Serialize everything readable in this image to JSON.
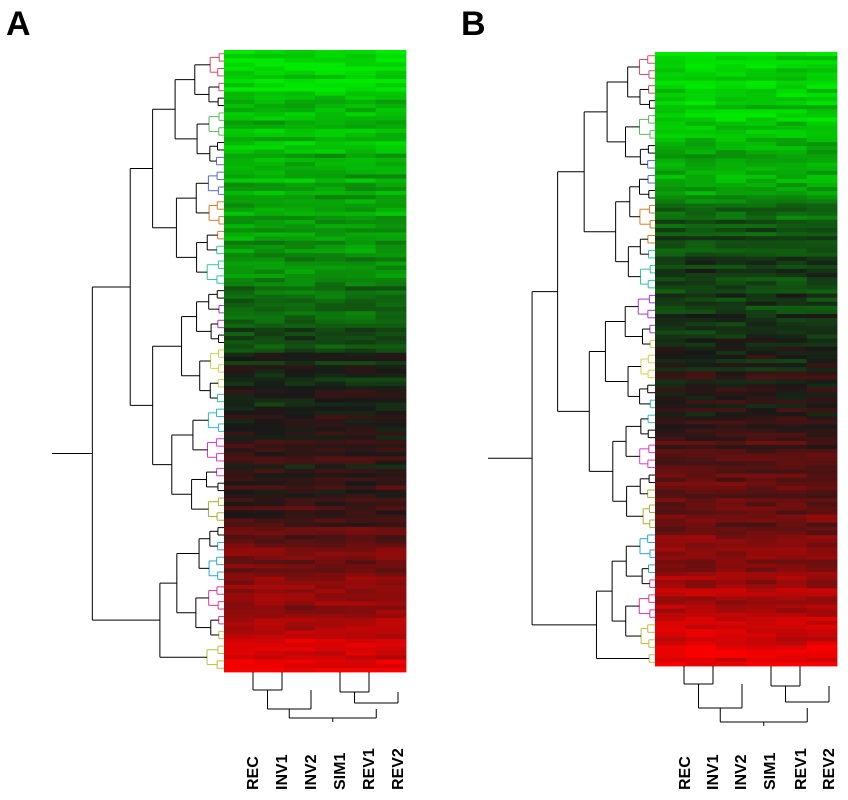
{
  "panels": [
    {
      "letter": "A",
      "columns": [
        "REC",
        "INV1",
        "INV2",
        "SIM1",
        "REV1",
        "REV2"
      ],
      "cluster_colors": [
        "#d94a5a",
        "#5bb85b",
        "#4a6fd1",
        "#d77a2a",
        "#2ec4a6",
        "#a03ad1",
        "#cfcf4a",
        "#2bbad1",
        "#d23ad1",
        "#a8b030",
        "#2aa6d1",
        "#d23a9c",
        "#b8c040"
      ],
      "row_profile": [
        {
          "at": 0.0,
          "value": -1.0
        },
        {
          "at": 0.08,
          "value": -0.8
        },
        {
          "at": 0.2,
          "value": -0.72
        },
        {
          "at": 0.3,
          "value": -0.6
        },
        {
          "at": 0.38,
          "value": -0.45
        },
        {
          "at": 0.44,
          "value": -0.3
        },
        {
          "at": 0.47,
          "value": -0.2
        },
        {
          "at": 0.5,
          "value": -0.05
        },
        {
          "at": 0.6,
          "value": 0.0
        },
        {
          "at": 0.7,
          "value": 0.12
        },
        {
          "at": 0.8,
          "value": 0.35
        },
        {
          "at": 0.9,
          "value": 0.55
        },
        {
          "at": 1.0,
          "value": 0.95
        }
      ]
    },
    {
      "letter": "B",
      "columns": [
        "REC",
        "INV1",
        "INV2",
        "SIM1",
        "REV1",
        "REV2"
      ],
      "cluster_colors": [
        "#d94a5a",
        "#5bb85b",
        "#4a6fd1",
        "#d77a2a",
        "#2ec4a6",
        "#a03ad1",
        "#cfcf4a",
        "#2bbad1",
        "#d23ad1",
        "#a8b030",
        "#2aa6d1",
        "#d23a9c",
        "#b8c040"
      ],
      "row_profile": [
        {
          "at": 0.0,
          "value": -0.95
        },
        {
          "at": 0.1,
          "value": -0.82
        },
        {
          "at": 0.22,
          "value": -0.7
        },
        {
          "at": 0.26,
          "value": -0.35
        },
        {
          "at": 0.35,
          "value": -0.2
        },
        {
          "at": 0.45,
          "value": -0.1
        },
        {
          "at": 0.55,
          "value": 0.05
        },
        {
          "at": 0.65,
          "value": 0.2
        },
        {
          "at": 0.75,
          "value": 0.35
        },
        {
          "at": 0.85,
          "value": 0.55
        },
        {
          "at": 0.92,
          "value": 0.72
        },
        {
          "at": 1.0,
          "value": 0.95
        }
      ]
    }
  ]
}
